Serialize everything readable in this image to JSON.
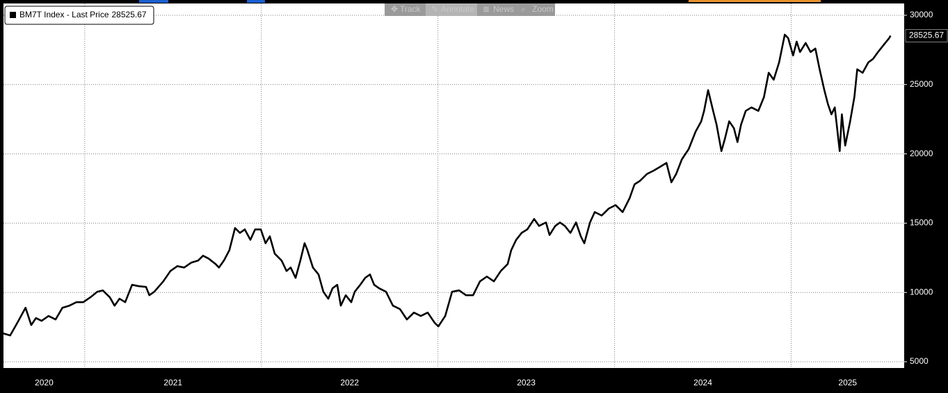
{
  "toolbar": [
    "Track",
    "Annotate",
    "News",
    "Zoom"
  ],
  "chart_data": {
    "type": "line",
    "x": [
      2020.539,
      2020.578,
      2020.618,
      2020.665,
      2020.697,
      2020.724,
      2020.756,
      2020.795,
      2020.835,
      2020.874,
      2020.913,
      2020.953,
      2020.992,
      2021.032,
      2021.071,
      2021.102,
      2021.142,
      2021.169,
      2021.197,
      2021.229,
      2021.268,
      2021.307,
      2021.347,
      2021.366,
      2021.394,
      2021.445,
      2021.485,
      2021.524,
      2021.563,
      2021.603,
      2021.642,
      2021.67,
      2021.701,
      2021.741,
      2021.76,
      2021.788,
      2021.819,
      2021.851,
      2021.879,
      2021.906,
      2021.938,
      2021.965,
      2021.997,
      2022.024,
      2022.048,
      2022.076,
      2022.115,
      2022.143,
      2022.166,
      2022.194,
      2022.221,
      2022.245,
      2022.261,
      2022.292,
      2022.324,
      2022.351,
      2022.379,
      2022.403,
      2022.43,
      2022.45,
      2022.478,
      2022.509,
      2022.529,
      2022.56,
      2022.588,
      2022.615,
      2022.639,
      2022.667,
      2022.706,
      2022.745,
      2022.785,
      2022.824,
      2022.864,
      2022.903,
      2022.942,
      2022.982,
      2023.002,
      2023.041,
      2023.08,
      2023.12,
      2023.159,
      2023.199,
      2023.238,
      2023.277,
      2023.317,
      2023.356,
      2023.395,
      2023.415,
      2023.443,
      2023.474,
      2023.506,
      2023.545,
      2023.573,
      2023.612,
      2023.632,
      2023.664,
      2023.691,
      2023.719,
      2023.75,
      2023.782,
      2023.809,
      2023.829,
      2023.861,
      2023.888,
      2023.927,
      2023.967,
      2024.006,
      2024.046,
      2024.085,
      2024.113,
      2024.144,
      2024.184,
      2024.223,
      2024.262,
      2024.294,
      2024.322,
      2024.349,
      2024.381,
      2024.42,
      2024.459,
      2024.491,
      2024.507,
      2024.53,
      2024.558,
      2024.578,
      2024.605,
      2024.625,
      2024.649,
      2024.676,
      2024.696,
      2024.716,
      2024.743,
      2024.775,
      2024.814,
      2024.846,
      2024.873,
      2024.901,
      2024.932,
      2024.964,
      2024.983,
      2025.011,
      2025.031,
      2025.05,
      2025.082,
      2025.11,
      2025.137,
      2025.161,
      2025.188,
      2025.208,
      2025.228,
      2025.247,
      2025.275,
      2025.287,
      2025.306,
      2025.334,
      2025.358,
      2025.374,
      2025.405,
      2025.437,
      2025.464,
      2025.492,
      2025.523,
      2025.555,
      2025.563
    ],
    "series": [
      {
        "name": "BM7T Index - Last Price",
        "color": "#000000",
        "values": [
          7050,
          6900,
          7800,
          8900,
          7650,
          8150,
          7950,
          8300,
          8050,
          8900,
          9050,
          9300,
          9300,
          9650,
          10050,
          10150,
          9650,
          9050,
          9550,
          9300,
          10550,
          10450,
          10400,
          9800,
          10050,
          10800,
          11550,
          11900,
          11800,
          12150,
          12300,
          12650,
          12450,
          12050,
          11800,
          12300,
          13050,
          14650,
          14300,
          14550,
          13800,
          14550,
          14550,
          13550,
          14050,
          12800,
          12300,
          11550,
          11800,
          11050,
          12300,
          13550,
          13050,
          11800,
          11300,
          10050,
          9550,
          10300,
          10550,
          9050,
          9800,
          9300,
          10050,
          10550,
          11050,
          11300,
          10550,
          10300,
          10050,
          9050,
          8800,
          8050,
          8550,
          8300,
          8550,
          7800,
          7550,
          8300,
          10050,
          10150,
          9800,
          9800,
          10800,
          11150,
          10800,
          11550,
          12050,
          13050,
          13800,
          14300,
          14550,
          15300,
          14800,
          15050,
          14150,
          14800,
          15050,
          14800,
          14300,
          15050,
          14050,
          13550,
          15050,
          15800,
          15550,
          16050,
          16300,
          15800,
          16800,
          17800,
          18050,
          18550,
          18800,
          19100,
          19350,
          17950,
          18550,
          19600,
          20350,
          21600,
          22350,
          23100,
          24600,
          23100,
          22100,
          20200,
          21100,
          22350,
          21850,
          20850,
          22100,
          23100,
          23350,
          23100,
          24100,
          25850,
          25350,
          26600,
          28600,
          28350,
          27100,
          28100,
          27350,
          28000,
          27350,
          27600,
          26100,
          24600,
          23600,
          22850,
          23350,
          20200,
          22850,
          20600,
          22350,
          24100,
          26100,
          25850,
          26600,
          26850,
          27350,
          27850,
          28350,
          28525.67
        ]
      }
    ],
    "xlim": [
      2020.54,
      2025.64
    ],
    "xticks": [
      2020,
      2021,
      2022,
      2023,
      2024,
      2025
    ],
    "ylim": [
      4550,
      30850
    ],
    "yticks": [
      5000,
      10000,
      15000,
      20000,
      25000,
      30000
    ],
    "grid": true
  }
}
